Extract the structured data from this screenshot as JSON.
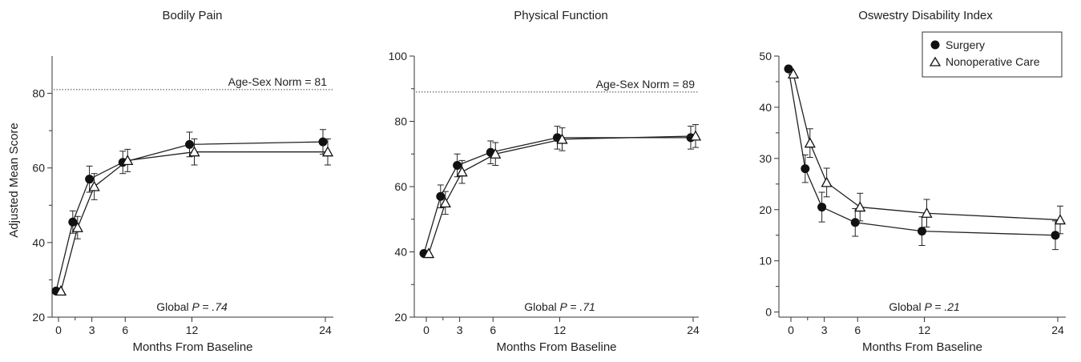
{
  "ylabel": "Adjusted Mean Score",
  "legend": [
    {
      "name": "Surgery",
      "marker": "filled-circle"
    },
    {
      "name": "Nonoperative Care",
      "marker": "open-triangle"
    }
  ],
  "colors": {
    "line": "#222222",
    "marker_fill": "#111111",
    "norm": "#444444"
  },
  "chart_data": [
    {
      "type": "line",
      "title": "Bodily Pain",
      "xlabel": "Months From Baseline",
      "x_ticks": [
        "0",
        "3",
        "6",
        "12",
        "24"
      ],
      "y_ticks": [
        "20",
        "40",
        "60",
        "80"
      ],
      "ylim": [
        20,
        90
      ],
      "norm": {
        "label": "Age-Sex Norm = 81",
        "value": 81
      },
      "p_prefix": "Global ",
      "p_value": "P = .74",
      "series": [
        {
          "name": "Surgery",
          "x": [
            0,
            1.5,
            3,
            6,
            12,
            24
          ],
          "y": [
            27,
            45.5,
            57,
            61.5,
            66.3,
            67
          ],
          "err": [
            0,
            3,
            3.5,
            3,
            3.3,
            3.3
          ]
        },
        {
          "name": "Nonoperative Care",
          "x": [
            0,
            1.5,
            3,
            6,
            12,
            24
          ],
          "y": [
            27,
            44,
            55,
            62,
            64.3,
            64.3
          ],
          "err": [
            0,
            3,
            3.5,
            3,
            3.5,
            3.5
          ]
        }
      ]
    },
    {
      "type": "line",
      "title": "Physical Function",
      "xlabel": "Months From Baseline",
      "x_ticks": [
        "0",
        "3",
        "6",
        "12",
        "24"
      ],
      "y_ticks": [
        "20",
        "40",
        "60",
        "80",
        "100"
      ],
      "ylim": [
        20,
        100
      ],
      "norm": {
        "label": "Age-Sex Norm = 89",
        "value": 89
      },
      "p_prefix": "Global ",
      "p_value": "P = .71",
      "series": [
        {
          "name": "Surgery",
          "x": [
            0,
            1.5,
            3,
            6,
            12,
            24
          ],
          "y": [
            39.5,
            57,
            66.5,
            70.5,
            75,
            75
          ],
          "err": [
            0,
            3.5,
            3.5,
            3.5,
            3.5,
            3.5
          ]
        },
        {
          "name": "Nonoperative Care",
          "x": [
            0,
            1.5,
            3,
            6,
            12,
            24
          ],
          "y": [
            39.5,
            55,
            64.5,
            70,
            74.5,
            75.5
          ],
          "err": [
            0,
            3.5,
            3.5,
            3.5,
            3.5,
            3.5
          ]
        }
      ]
    },
    {
      "type": "line",
      "title": "Oswestry Disability Index",
      "xlabel": "Months From Baseline",
      "x_ticks": [
        "0",
        "3",
        "6",
        "12",
        "24"
      ],
      "y_ticks": [
        "0",
        "10",
        "20",
        "30",
        "40",
        "50"
      ],
      "ylim": [
        -1,
        50
      ],
      "legend_position": "top-right",
      "p_prefix": "Global ",
      "p_value": "P = .21",
      "series": [
        {
          "name": "Surgery",
          "x": [
            0,
            1.5,
            3,
            6,
            12,
            24
          ],
          "y": [
            47.5,
            28,
            20.5,
            17.5,
            15.8,
            15
          ],
          "err": [
            0,
            2.7,
            2.9,
            2.7,
            2.8,
            2.8
          ]
        },
        {
          "name": "Nonoperative Care",
          "x": [
            0,
            1.5,
            3,
            6,
            12,
            24
          ],
          "y": [
            46.5,
            33,
            25.3,
            20.5,
            19.3,
            18
          ],
          "err": [
            0,
            2.8,
            2.8,
            2.7,
            2.7,
            2.7
          ]
        }
      ]
    }
  ]
}
